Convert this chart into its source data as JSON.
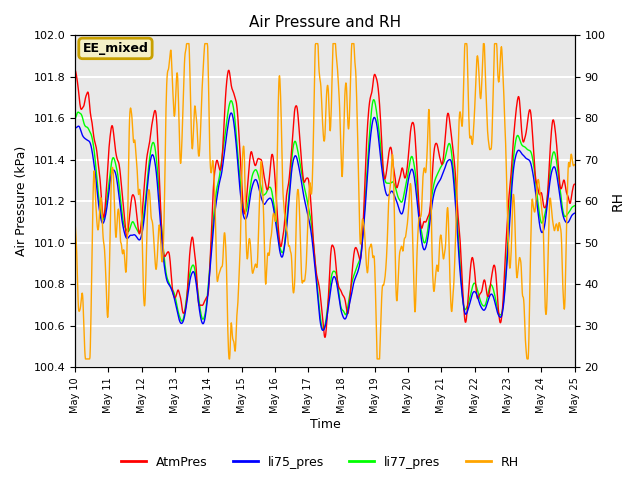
{
  "title": "Air Pressure and RH",
  "xlabel": "Time",
  "ylabel_left": "Air Pressure (kPa)",
  "ylabel_right": "RH",
  "ylim_left": [
    100.4,
    102.0
  ],
  "ylim_right": [
    20,
    100
  ],
  "annotation": "EE_mixed",
  "annotation_color": "#c8a000",
  "background_color": "#e8e8e8",
  "grid_color": "white",
  "colors": {
    "AtmPres": "red",
    "li75_pres": "blue",
    "li77_pres": "lime",
    "RH": "orange"
  },
  "legend_labels": [
    "AtmPres",
    "li75_pres",
    "li77_pres",
    "RH"
  ],
  "x_tick_labels": [
    "May 10",
    "May 11",
    "May 12",
    "May 13",
    "May 14",
    "May 15",
    "May 16",
    "May 17",
    "May 18",
    "May 19",
    "May 20",
    "May 21",
    "May 22",
    "May 23",
    "May 24",
    "May 25"
  ],
  "n_points": 1440,
  "seed": 7
}
